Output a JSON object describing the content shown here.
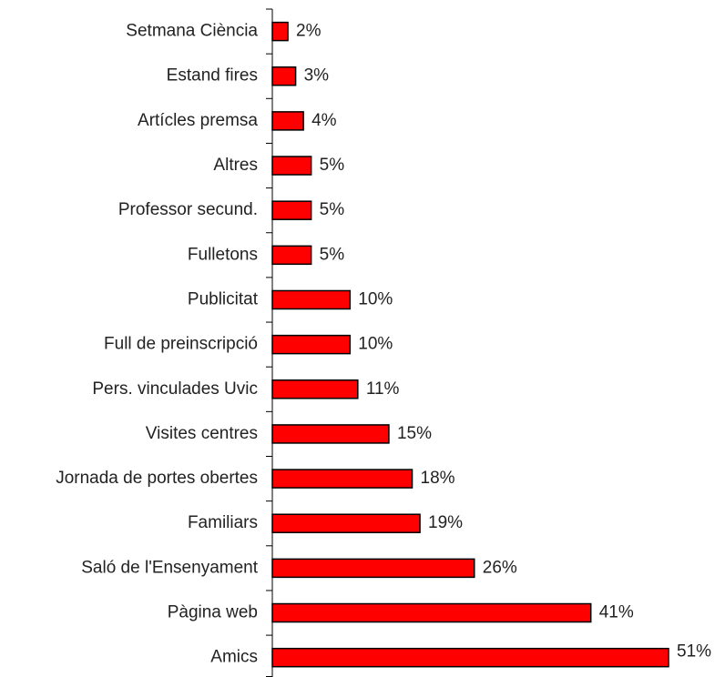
{
  "chart_data": {
    "type": "bar",
    "orientation": "horizontal",
    "categories": [
      "Setmana Ciència",
      "Estand fires",
      "Artícles premsa",
      "Altres",
      "Professor secund.",
      "Fulletons",
      "Publicitat",
      "Full de preinscripció",
      "Pers. vinculades Uvic",
      "Visites centres",
      "Jornada de portes obertes",
      "Familiars",
      "Saló de l'Ensenyament",
      "Pàgina web",
      "Amics"
    ],
    "values": [
      2,
      3,
      4,
      5,
      5,
      5,
      10,
      10,
      11,
      15,
      18,
      19,
      26,
      41,
      51
    ],
    "value_labels": [
      "2%",
      "3%",
      "4%",
      "5%",
      "5%",
      "5%",
      "10%",
      "10%",
      "11%",
      "15%",
      "18%",
      "19%",
      "26%",
      "41%",
      "51%"
    ],
    "color": "#ff0000"
  }
}
